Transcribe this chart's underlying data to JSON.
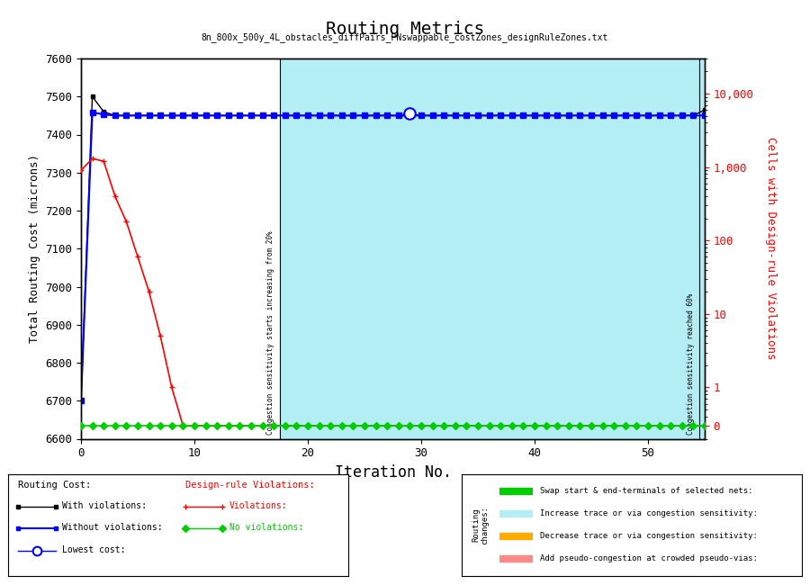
{
  "title": "Routing Metrics",
  "subtitle": "8n_800x_500y_4L_obstacles_diffPairs_PNswappable_costZones_designRuleZones.txt",
  "xlabel": "Iteration No.",
  "ylabel_left": "Total Routing Cost (microns)",
  "ylabel_right": "Cells with Design-rule Violations",
  "ylim_left": [
    6600,
    7600
  ],
  "xlim": [
    0,
    55
  ],
  "cyan_start": 17.5,
  "vline1_x": 17.5,
  "vline2_x": 54.5,
  "vline1_label": "Congestion sensitivity starts increasing from 20%",
  "vline2_label": "Congestion sensitivity reached 60%",
  "with_viol_x": [
    0,
    1,
    2,
    3,
    4,
    5,
    6,
    7,
    8,
    9,
    10,
    11,
    12,
    13,
    14,
    15,
    16,
    17,
    18,
    19,
    20,
    21,
    22,
    23,
    24,
    25,
    26,
    27,
    28,
    29,
    30,
    31,
    32,
    33,
    34,
    35,
    36,
    37,
    38,
    39,
    40,
    41,
    42,
    43,
    44,
    45,
    46,
    47,
    48,
    49,
    50,
    51,
    52,
    53,
    54,
    55
  ],
  "with_viol_y": [
    6700,
    7500,
    7460,
    7450,
    7450,
    7450,
    7450,
    7450,
    7450,
    7450,
    7450,
    7450,
    7450,
    7450,
    7450,
    7450,
    7450,
    7450,
    7450,
    7450,
    7450,
    7450,
    7450,
    7450,
    7450,
    7450,
    7450,
    7450,
    7450,
    7455,
    7450,
    7450,
    7450,
    7450,
    7450,
    7450,
    7450,
    7450,
    7450,
    7450,
    7450,
    7450,
    7450,
    7450,
    7450,
    7450,
    7450,
    7450,
    7450,
    7450,
    7450,
    7450,
    7450,
    7450,
    7450,
    7465
  ],
  "without_viol_x": [
    0,
    1,
    2,
    3,
    4,
    5,
    6,
    7,
    8,
    9,
    10,
    11,
    12,
    13,
    14,
    15,
    16,
    17,
    18,
    19,
    20,
    21,
    22,
    23,
    24,
    25,
    26,
    27,
    28,
    29,
    30,
    31,
    32,
    33,
    34,
    35,
    36,
    37,
    38,
    39,
    40,
    41,
    42,
    43,
    44,
    45,
    46,
    47,
    48,
    49,
    50,
    51,
    52,
    53,
    54,
    55
  ],
  "without_viol_y": [
    6700,
    7458,
    7453,
    7450,
    7450,
    7450,
    7450,
    7450,
    7450,
    7450,
    7450,
    7450,
    7450,
    7450,
    7450,
    7450,
    7450,
    7450,
    7450,
    7450,
    7450,
    7450,
    7450,
    7450,
    7450,
    7450,
    7450,
    7450,
    7450,
    7450,
    7450,
    7450,
    7450,
    7450,
    7450,
    7450,
    7450,
    7450,
    7450,
    7450,
    7450,
    7450,
    7450,
    7450,
    7450,
    7450,
    7450,
    7450,
    7450,
    7450,
    7450,
    7450,
    7450,
    7450,
    7450,
    7450
  ],
  "lowest_x": [
    29
  ],
  "lowest_y": [
    7455
  ],
  "violations_x": [
    0,
    1,
    2,
    3,
    4,
    5,
    6,
    7,
    8,
    9,
    10,
    11,
    12,
    13,
    14,
    15,
    16,
    17,
    18,
    19,
    20,
    21,
    22,
    23,
    24,
    25,
    26,
    27,
    28,
    29,
    30,
    31,
    32,
    33,
    34,
    35,
    36,
    37,
    38,
    39,
    40,
    41,
    42,
    43,
    44,
    45,
    46,
    47,
    48,
    49,
    50,
    51,
    52,
    53,
    54,
    55
  ],
  "violations_y": [
    900,
    1300,
    1200,
    400,
    180,
    60,
    20,
    5,
    1,
    0,
    0,
    0,
    0,
    0,
    0,
    0,
    0,
    0,
    0,
    0,
    0,
    0,
    0,
    0,
    0,
    0,
    0,
    0,
    0,
    0,
    0,
    0,
    0,
    0,
    0,
    0,
    0,
    0,
    0,
    0,
    0,
    0,
    0,
    0,
    0,
    0,
    0,
    0,
    0,
    0,
    0,
    0,
    0,
    0,
    0,
    0
  ],
  "no_viol_x": [
    0,
    1,
    2,
    3,
    4,
    5,
    6,
    7,
    8,
    9,
    10,
    11,
    12,
    13,
    14,
    15,
    16,
    17,
    18,
    19,
    20,
    21,
    22,
    23,
    24,
    25,
    26,
    27,
    28,
    29,
    30,
    31,
    32,
    33,
    34,
    35,
    36,
    37,
    38,
    39,
    40,
    41,
    42,
    43,
    44,
    45,
    46,
    47,
    48,
    49,
    50,
    51,
    52,
    53,
    54,
    55
  ],
  "yticks_left": [
    6600,
    6700,
    6800,
    6900,
    7000,
    7100,
    7200,
    7300,
    7400,
    7500,
    7600
  ],
  "yticks_right_vals": [
    0,
    1,
    10,
    100,
    1000,
    10000
  ],
  "yticks_right_labels": [
    "0",
    "1",
    "10",
    "100",
    "1,000",
    "10,000"
  ],
  "xticks": [
    0,
    10,
    20,
    30,
    40,
    50
  ],
  "col_with_viol": "#000000",
  "col_without_viol": "#0000ff",
  "col_viol": "#ff0000",
  "col_no_viol": "#00cc00",
  "col_cyan": "#b2eef4",
  "col_bg": "#ffffff",
  "legend_changes": [
    [
      "Swap start & end-terminals of selected nets:",
      "#00cc00"
    ],
    [
      "Increase trace or via congestion sensitivity:",
      "#b2eef4"
    ],
    [
      "Decrease trace or via congestion sensitivity:",
      "#ffaa00"
    ],
    [
      "Add pseudo-congestion at crowded pseudo-vias:",
      "#ff8888"
    ]
  ]
}
